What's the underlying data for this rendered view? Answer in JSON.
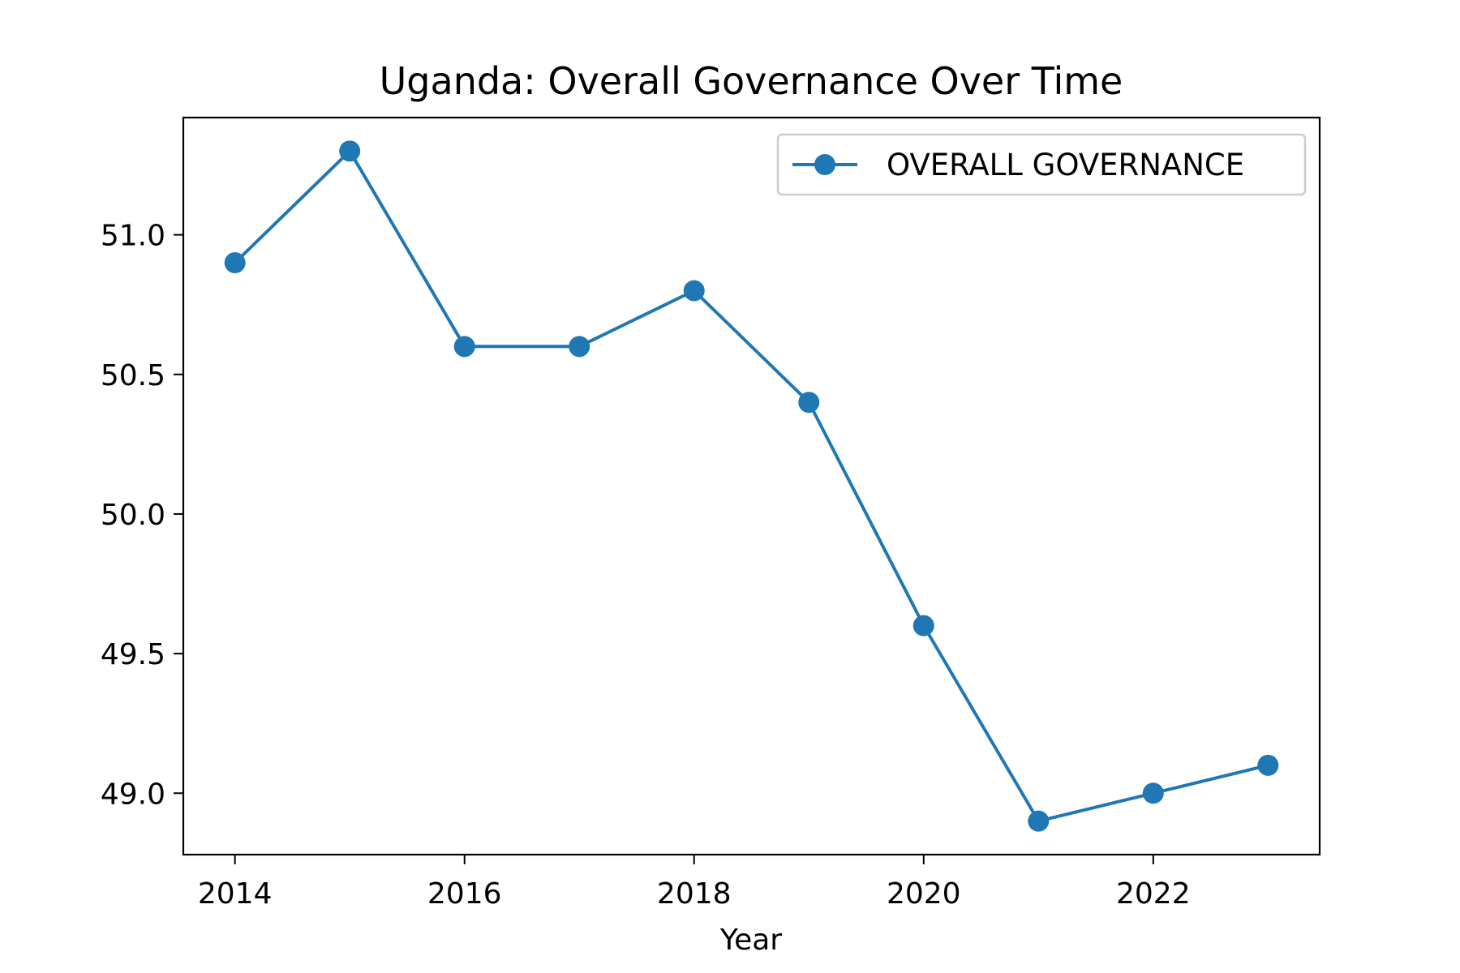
{
  "chart_data": {
    "type": "line",
    "title": "Uganda: Overall Governance Over Time",
    "xlabel": "Year",
    "ylabel": "",
    "x": [
      2014,
      2015,
      2016,
      2017,
      2018,
      2019,
      2020,
      2021,
      2022,
      2023
    ],
    "series": [
      {
        "name": "OVERALL GOVERNANCE",
        "color": "#1f77b4",
        "marker": "circle",
        "values": [
          50.9,
          51.3,
          50.6,
          50.6,
          50.8,
          50.4,
          49.6,
          48.9,
          49.0,
          49.1
        ]
      }
    ],
    "xlim": [
      2013.55,
      2023.45
    ],
    "ylim": [
      48.78,
      51.42
    ],
    "xticks": [
      2014,
      2016,
      2018,
      2020,
      2022
    ],
    "xtick_labels": [
      "2014",
      "2016",
      "2018",
      "2020",
      "2022"
    ],
    "yticks": [
      49.0,
      49.5,
      50.0,
      50.5,
      51.0
    ],
    "ytick_labels": [
      "49.0",
      "49.5",
      "50.0",
      "50.5",
      "51.0"
    ],
    "grid": false,
    "legend_position": "top-right"
  }
}
